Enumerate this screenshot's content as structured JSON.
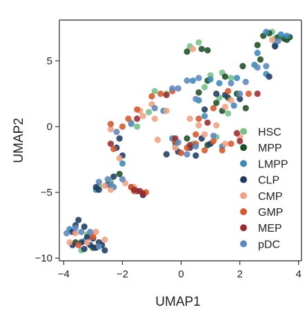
{
  "chart_data": {
    "type": "scatter",
    "title": "",
    "xlabel": "UMAP1",
    "ylabel": "UMAP2",
    "xlim": [
      -4.15,
      4.1
    ],
    "ylim": [
      -10.2,
      8.1
    ],
    "xticks": [
      -4,
      -2,
      0,
      2,
      4
    ],
    "yticks": [
      -10,
      -5,
      0,
      5
    ],
    "xtick_labels": [
      "−4",
      "−2",
      "0",
      "2",
      "4"
    ],
    "ytick_labels": [
      "−10",
      "−5",
      "0",
      "5"
    ],
    "grid": false,
    "legend_position": "lower-right",
    "series": [
      {
        "name": "HSC",
        "color": "#78c08a",
        "points": [
          [
            3.1,
            7.2
          ],
          [
            3.2,
            6.7
          ],
          [
            0.3,
            6.1
          ],
          [
            0.6,
            6.4
          ],
          [
            1.0,
            3.9
          ],
          [
            1.4,
            4.1
          ],
          [
            1.7,
            3.7
          ],
          [
            0.8,
            3.0
          ],
          [
            1.3,
            2.2
          ],
          [
            -0.5,
            2.5
          ],
          [
            -1.1,
            1.1
          ],
          [
            -1.5,
            0.0
          ],
          [
            -1.7,
            0.3
          ],
          [
            1.6,
            1.0
          ],
          [
            1.2,
            -0.8
          ],
          [
            0.4,
            -1.3
          ],
          [
            -3.4,
            -9.4
          ],
          [
            -3.2,
            -8.2
          ],
          [
            -2.4,
            -4.2
          ],
          [
            -2.8,
            -4.5
          ],
          [
            -0.2,
            -1.5
          ],
          [
            -0.9,
            2.7
          ]
        ]
      },
      {
        "name": "MPP",
        "color": "#1c4f25",
        "points": [
          [
            2.8,
            6.9
          ],
          [
            3.0,
            7.1
          ],
          [
            3.3,
            6.8
          ],
          [
            3.5,
            6.7
          ],
          [
            3.6,
            6.6
          ],
          [
            3.7,
            6.8
          ],
          [
            2.6,
            6.2
          ],
          [
            2.7,
            5.1
          ],
          [
            0.7,
            5.9
          ],
          [
            0.9,
            5.8
          ],
          [
            0.2,
            5.7
          ],
          [
            2.1,
            4.6
          ],
          [
            1.5,
            3.8
          ],
          [
            0.9,
            3.5
          ],
          [
            0.6,
            2.6
          ],
          [
            1.6,
            2.2
          ],
          [
            1.9,
            2.5
          ],
          [
            1.2,
            1.8
          ],
          [
            1.4,
            1.2
          ],
          [
            2.2,
            1.4
          ],
          [
            -2.1,
            -3.6
          ],
          [
            -2.5,
            -4.4
          ],
          [
            -1.7,
            -4.6
          ],
          [
            -1.3,
            -5.1
          ],
          [
            -0.2,
            -1.2
          ],
          [
            0.2,
            -0.9
          ],
          [
            0.9,
            -1.4
          ],
          [
            -3.0,
            -9.2
          ],
          [
            -3.6,
            -8.8
          ]
        ]
      },
      {
        "name": "LMPP",
        "color": "#3d8ab6",
        "points": [
          [
            3.4,
            7.0
          ],
          [
            3.2,
            6.2
          ],
          [
            3.6,
            6.9
          ],
          [
            2.9,
            7.2
          ],
          [
            2.6,
            5.6
          ],
          [
            2.5,
            4.7
          ],
          [
            2.9,
            4.0
          ],
          [
            1.0,
            3.6
          ],
          [
            1.3,
            3.3
          ],
          [
            1.9,
            3.7
          ],
          [
            0.4,
            3.5
          ],
          [
            0.6,
            2.0
          ],
          [
            0.8,
            0.8
          ],
          [
            1.8,
            1.6
          ],
          [
            -0.6,
            1.2
          ],
          [
            -2.0,
            -2.8
          ],
          [
            -2.3,
            -4.6
          ],
          [
            -2.9,
            -4.8
          ],
          [
            -0.3,
            -0.9
          ],
          [
            1.4,
            -1.5
          ],
          [
            -3.8,
            -7.8
          ],
          [
            -3.3,
            -8.7
          ]
        ]
      },
      {
        "name": "CLP",
        "color": "#1f3a60",
        "points": [
          [
            -3.5,
            -7.1
          ],
          [
            -3.3,
            -7.6
          ],
          [
            -3.6,
            -7.5
          ],
          [
            -3.7,
            -8.0
          ],
          [
            -3.2,
            -8.4
          ],
          [
            -3.0,
            -8.5
          ],
          [
            -2.8,
            -8.8
          ],
          [
            -2.7,
            -9.0
          ],
          [
            -3.1,
            -9.0
          ],
          [
            -3.4,
            -8.8
          ],
          [
            -3.3,
            -9.3
          ],
          [
            -2.9,
            -9.2
          ],
          [
            -2.6,
            -9.4
          ],
          [
            -3.7,
            -9.0
          ],
          [
            -2.9,
            -4.6
          ],
          [
            -2.8,
            -4.8
          ],
          [
            -2.3,
            -3.8
          ],
          [
            -1.5,
            -4.9
          ],
          [
            -1.3,
            -5.2
          ],
          [
            -2.1,
            -0.9
          ],
          [
            -2.2,
            -1.6
          ],
          [
            -2.0,
            -2.2
          ],
          [
            -0.5,
            -2.1
          ],
          [
            -0.1,
            -1.9
          ],
          [
            0.3,
            -1.6
          ],
          [
            0.5,
            -2.2
          ],
          [
            0.7,
            -0.9
          ],
          [
            1.0,
            -1.3
          ],
          [
            1.2,
            2.5
          ],
          [
            1.5,
            2.4
          ],
          [
            0.8,
            1.3
          ],
          [
            2.0,
            2.1
          ],
          [
            3.0,
            3.8
          ],
          [
            3.2,
            6.1
          ]
        ]
      },
      {
        "name": "CMP",
        "color": "#f0a085",
        "points": [
          [
            -3.8,
            -8.8
          ],
          [
            -3.6,
            -8.1
          ],
          [
            -3.2,
            -8.8
          ],
          [
            -3.0,
            -8.2
          ],
          [
            -2.9,
            -8.0
          ],
          [
            -2.6,
            -8.6
          ],
          [
            -2.4,
            -4.8
          ],
          [
            -2.6,
            -4.5
          ],
          [
            -1.9,
            -4.3
          ],
          [
            -1.6,
            -4.6
          ],
          [
            -2.1,
            -2.4
          ],
          [
            -2.4,
            -0.2
          ],
          [
            -1.3,
            0.8
          ],
          [
            -1.0,
            1.7
          ],
          [
            -1.4,
            1.2
          ],
          [
            -0.5,
            1.2
          ],
          [
            -0.9,
            0.6
          ],
          [
            0.3,
            0.6
          ],
          [
            0.6,
            0.1
          ],
          [
            0.8,
            -0.6
          ],
          [
            0.4,
            5.9
          ],
          [
            1.7,
            2.0
          ],
          [
            1.5,
            1.5
          ],
          [
            1.2,
            0.1
          ],
          [
            1.5,
            -1.3
          ],
          [
            2.0,
            -0.8
          ],
          [
            3.1,
            6.6
          ],
          [
            -0.2,
            -1.6
          ],
          [
            -0.8,
            -1.0
          ]
        ]
      },
      {
        "name": "GMP",
        "color": "#d4582c",
        "points": [
          [
            -2.4,
            0.2
          ],
          [
            -2.0,
            0.0
          ],
          [
            -2.3,
            -1.7
          ],
          [
            -1.8,
            0.6
          ],
          [
            -1.5,
            1.3
          ],
          [
            -1.0,
            2.3
          ],
          [
            -0.7,
            2.5
          ],
          [
            -0.3,
            2.7
          ],
          [
            -1.7,
            -4.6
          ],
          [
            -1.6,
            -4.9
          ],
          [
            -1.2,
            -5.0
          ],
          [
            -0.2,
            -1.1
          ],
          [
            0.2,
            -1.6
          ],
          [
            0.5,
            -0.6
          ],
          [
            1.1,
            -1.1
          ],
          [
            1.4,
            -1.8
          ],
          [
            1.7,
            -1.3
          ],
          [
            0.8,
            -1.8
          ],
          [
            0.6,
            0.6
          ],
          [
            1.1,
            1.4
          ],
          [
            1.6,
            2.7
          ],
          [
            2.3,
            2.5
          ],
          [
            -3.0,
            -8.4
          ],
          [
            -3.5,
            -9.0
          ],
          [
            0.5,
            -1.3
          ],
          [
            0.0,
            -2.0
          ]
        ]
      },
      {
        "name": "MEP",
        "color": "#9a2a30",
        "points": [
          [
            -1.4,
            -4.9
          ],
          [
            -1.3,
            -5.1
          ],
          [
            -1.6,
            -4.8
          ],
          [
            1.9,
            -0.5
          ],
          [
            2.0,
            -1.1
          ],
          [
            2.6,
            2.5
          ],
          [
            0.9,
            0.3
          ],
          [
            -0.5,
            2.4
          ],
          [
            -0.2,
            -0.9
          ],
          [
            0.3,
            -1.4
          ],
          [
            -2.4,
            -1.3
          ],
          [
            -1.5,
            0.6
          ]
        ]
      },
      {
        "name": "pDC",
        "color": "#5e87bb",
        "points": [
          [
            -3.9,
            -8.1
          ],
          [
            -3.6,
            -7.7
          ],
          [
            -3.4,
            -8.0
          ],
          [
            -3.1,
            -8.0
          ],
          [
            -2.8,
            -9.1
          ],
          [
            -2.8,
            -4.2
          ],
          [
            -2.5,
            -4.0
          ],
          [
            -2.4,
            -4.4
          ],
          [
            -2.0,
            -4.0
          ],
          [
            -1.7,
            0.2
          ],
          [
            -2.2,
            -0.4
          ],
          [
            -0.9,
            1.4
          ],
          [
            -0.3,
            2.9
          ],
          [
            -0.1,
            2.9
          ],
          [
            0.2,
            3.5
          ],
          [
            0.5,
            2.1
          ],
          [
            0.6,
            3.7
          ],
          [
            1.7,
            3.3
          ],
          [
            2.0,
            2.5
          ],
          [
            2.2,
            3.4
          ],
          [
            2.6,
            4.5
          ],
          [
            2.9,
            4.6
          ],
          [
            3.3,
            6.5
          ],
          [
            1.1,
            -0.7
          ],
          [
            0.5,
            -1.5
          ],
          [
            0.2,
            -2.1
          ],
          [
            -0.1,
            -1.2
          ]
        ]
      }
    ]
  }
}
